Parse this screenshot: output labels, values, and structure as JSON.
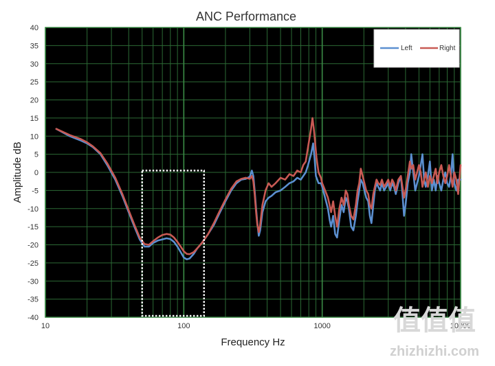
{
  "chart_data": {
    "type": "line",
    "title": "ANC Performance",
    "xlabel": "Frequency Hz",
    "ylabel": "Amplitude dB",
    "x_scale": "log",
    "xlim": [
      10,
      10000
    ],
    "ylim": [
      -40,
      40
    ],
    "x_ticks": [
      "10",
      "100",
      "1000",
      "10000"
    ],
    "y_ticks": [
      "40",
      "35",
      "30",
      "25",
      "20",
      "15",
      "10",
      "5",
      "0",
      "-5",
      "-10",
      "-15",
      "-20",
      "-25",
      "-30",
      "-35",
      "-40"
    ],
    "grid": true,
    "legend_position": "top-right",
    "highlight_box": {
      "x_range": [
        50,
        140
      ],
      "y_range": [
        -40,
        0.5
      ]
    },
    "series": [
      {
        "name": "Left",
        "color": "#5b8fd0",
        "points": [
          [
            12,
            12
          ],
          [
            15,
            10
          ],
          [
            18,
            8.8
          ],
          [
            20,
            8
          ],
          [
            22,
            7
          ],
          [
            25,
            5
          ],
          [
            28,
            2
          ],
          [
            32,
            -2
          ],
          [
            36,
            -6.5
          ],
          [
            40,
            -11
          ],
          [
            44,
            -15
          ],
          [
            48,
            -18.5
          ],
          [
            52,
            -20.5
          ],
          [
            56,
            -20.5
          ],
          [
            60,
            -19.5
          ],
          [
            65,
            -18.8
          ],
          [
            70,
            -18.5
          ],
          [
            75,
            -18.2
          ],
          [
            80,
            -18.4
          ],
          [
            85,
            -19.2
          ],
          [
            90,
            -20.5
          ],
          [
            95,
            -22
          ],
          [
            100,
            -23.5
          ],
          [
            105,
            -24
          ],
          [
            110,
            -23.8
          ],
          [
            118,
            -22.5
          ],
          [
            125,
            -21
          ],
          [
            135,
            -19.5
          ],
          [
            150,
            -17
          ],
          [
            165,
            -14.5
          ],
          [
            180,
            -11.5
          ],
          [
            200,
            -8
          ],
          [
            220,
            -5
          ],
          [
            240,
            -3
          ],
          [
            260,
            -2
          ],
          [
            280,
            -1.8
          ],
          [
            300,
            -1.2
          ],
          [
            310,
            0.5
          ],
          [
            318,
            -1
          ],
          [
            325,
            -5
          ],
          [
            333,
            -10
          ],
          [
            340,
            -14
          ],
          [
            348,
            -17.5
          ],
          [
            356,
            -16
          ],
          [
            370,
            -11
          ],
          [
            390,
            -8
          ],
          [
            410,
            -7
          ],
          [
            430,
            -6.5
          ],
          [
            460,
            -5.5
          ],
          [
            500,
            -5
          ],
          [
            540,
            -4
          ],
          [
            580,
            -3
          ],
          [
            620,
            -2.5
          ],
          [
            660,
            -1.5
          ],
          [
            700,
            -2
          ],
          [
            730,
            -1
          ],
          [
            760,
            0
          ],
          [
            790,
            2
          ],
          [
            830,
            5
          ],
          [
            860,
            8
          ],
          [
            880,
            4
          ],
          [
            900,
            -1
          ],
          [
            940,
            -3
          ],
          [
            980,
            -3
          ],
          [
            1000,
            -4
          ],
          [
            1050,
            -7
          ],
          [
            1100,
            -10
          ],
          [
            1130,
            -13
          ],
          [
            1160,
            -15
          ],
          [
            1200,
            -12
          ],
          [
            1240,
            -17
          ],
          [
            1280,
            -18
          ],
          [
            1330,
            -13
          ],
          [
            1380,
            -9
          ],
          [
            1430,
            -11
          ],
          [
            1480,
            -7
          ],
          [
            1520,
            -8
          ],
          [
            1560,
            -10
          ],
          [
            1620,
            -15
          ],
          [
            1680,
            -16
          ],
          [
            1750,
            -12
          ],
          [
            1800,
            -8
          ],
          [
            1850,
            -5
          ],
          [
            1900,
            -2
          ],
          [
            1960,
            -3
          ],
          [
            2020,
            -5
          ],
          [
            2080,
            -7
          ],
          [
            2150,
            -8
          ],
          [
            2210,
            -12
          ],
          [
            2270,
            -14
          ],
          [
            2340,
            -9
          ],
          [
            2400,
            -5
          ],
          [
            2470,
            -3
          ],
          [
            2540,
            -4
          ],
          [
            2620,
            -5
          ],
          [
            2700,
            -3
          ],
          [
            2800,
            -5
          ],
          [
            2900,
            -4
          ],
          [
            3000,
            -3
          ],
          [
            3100,
            -5
          ],
          [
            3200,
            -3
          ],
          [
            3300,
            -4
          ],
          [
            3400,
            -6
          ],
          [
            3550,
            -3
          ],
          [
            3700,
            -1
          ],
          [
            3800,
            -6
          ],
          [
            3900,
            -12
          ],
          [
            4000,
            -9
          ],
          [
            4150,
            -3
          ],
          [
            4300,
            0
          ],
          [
            4400,
            5
          ],
          [
            4550,
            0
          ],
          [
            4700,
            -5
          ],
          [
            4850,
            -3
          ],
          [
            5000,
            -1
          ],
          [
            5150,
            2
          ],
          [
            5300,
            5
          ],
          [
            5450,
            -2
          ],
          [
            5600,
            -4
          ],
          [
            5800,
            -1
          ],
          [
            6000,
            3
          ],
          [
            6200,
            -5
          ],
          [
            6400,
            -2
          ],
          [
            6600,
            -5
          ],
          [
            6800,
            -1
          ],
          [
            7000,
            -3
          ],
          [
            7250,
            -5
          ],
          [
            7500,
            -2
          ],
          [
            7750,
            0
          ],
          [
            8000,
            -3
          ],
          [
            8250,
            -4
          ],
          [
            8500,
            -1
          ],
          [
            8750,
            5
          ],
          [
            9000,
            -3
          ],
          [
            9300,
            -5
          ],
          [
            9600,
            -2
          ],
          [
            10000,
            -2
          ]
        ]
      },
      {
        "name": "Right",
        "color": "#c85a54",
        "points": [
          [
            12,
            12
          ],
          [
            15,
            10.3
          ],
          [
            18,
            9.2
          ],
          [
            20,
            8.3
          ],
          [
            22,
            7.2
          ],
          [
            25,
            5.3
          ],
          [
            28,
            2.5
          ],
          [
            32,
            -1.5
          ],
          [
            36,
            -6
          ],
          [
            40,
            -10.5
          ],
          [
            44,
            -14.5
          ],
          [
            48,
            -18
          ],
          [
            52,
            -19.8
          ],
          [
            56,
            -20
          ],
          [
            60,
            -19
          ],
          [
            65,
            -18
          ],
          [
            70,
            -17.3
          ],
          [
            75,
            -17
          ],
          [
            80,
            -17.2
          ],
          [
            85,
            -18
          ],
          [
            90,
            -19.2
          ],
          [
            95,
            -20.5
          ],
          [
            100,
            -21.8
          ],
          [
            105,
            -22.5
          ],
          [
            110,
            -22.6
          ],
          [
            118,
            -22
          ],
          [
            125,
            -21
          ],
          [
            135,
            -19.5
          ],
          [
            150,
            -17
          ],
          [
            165,
            -14
          ],
          [
            180,
            -11
          ],
          [
            200,
            -7.5
          ],
          [
            220,
            -4.5
          ],
          [
            240,
            -2.5
          ],
          [
            260,
            -1.8
          ],
          [
            280,
            -1.5
          ],
          [
            300,
            -1.8
          ],
          [
            310,
            -1
          ],
          [
            318,
            -2.5
          ],
          [
            325,
            -6
          ],
          [
            333,
            -11
          ],
          [
            340,
            -14.5
          ],
          [
            348,
            -16.5
          ],
          [
            356,
            -14.5
          ],
          [
            370,
            -9
          ],
          [
            390,
            -5
          ],
          [
            410,
            -3
          ],
          [
            430,
            -4
          ],
          [
            460,
            -3
          ],
          [
            500,
            -1.5
          ],
          [
            540,
            -2
          ],
          [
            580,
            -0.5
          ],
          [
            620,
            -1
          ],
          [
            660,
            0.5
          ],
          [
            700,
            0
          ],
          [
            730,
            2
          ],
          [
            760,
            3
          ],
          [
            790,
            7
          ],
          [
            830,
            12
          ],
          [
            850,
            15
          ],
          [
            870,
            12
          ],
          [
            890,
            8
          ],
          [
            910,
            4
          ],
          [
            940,
            0
          ],
          [
            980,
            -1.5
          ],
          [
            1000,
            -3
          ],
          [
            1050,
            -5
          ],
          [
            1100,
            -7
          ],
          [
            1130,
            -9
          ],
          [
            1160,
            -11
          ],
          [
            1200,
            -8
          ],
          [
            1240,
            -12
          ],
          [
            1280,
            -15
          ],
          [
            1330,
            -10
          ],
          [
            1380,
            -7
          ],
          [
            1430,
            -9
          ],
          [
            1480,
            -5
          ],
          [
            1520,
            -6
          ],
          [
            1560,
            -9
          ],
          [
            1620,
            -12
          ],
          [
            1680,
            -13
          ],
          [
            1750,
            -9
          ],
          [
            1800,
            -5
          ],
          [
            1850,
            -3
          ],
          [
            1900,
            1
          ],
          [
            1960,
            -1
          ],
          [
            2020,
            -3
          ],
          [
            2080,
            -5
          ],
          [
            2150,
            -6
          ],
          [
            2210,
            -9
          ],
          [
            2270,
            -10
          ],
          [
            2340,
            -6
          ],
          [
            2400,
            -4
          ],
          [
            2470,
            -2
          ],
          [
            2540,
            -3
          ],
          [
            2620,
            -3.5
          ],
          [
            2700,
            -2
          ],
          [
            2800,
            -4
          ],
          [
            2900,
            -3
          ],
          [
            3000,
            -2
          ],
          [
            3100,
            -4
          ],
          [
            3200,
            -2
          ],
          [
            3300,
            -3
          ],
          [
            3400,
            -5
          ],
          [
            3550,
            -2
          ],
          [
            3700,
            -1
          ],
          [
            3800,
            -4
          ],
          [
            3900,
            -7
          ],
          [
            4000,
            -5
          ],
          [
            4150,
            -1
          ],
          [
            4300,
            3
          ],
          [
            4400,
            1
          ],
          [
            4550,
            2
          ],
          [
            4700,
            -2
          ],
          [
            4850,
            0
          ],
          [
            5000,
            2
          ],
          [
            5150,
            0
          ],
          [
            5300,
            -4
          ],
          [
            5450,
            -2
          ],
          [
            5600,
            0
          ],
          [
            5800,
            -4
          ],
          [
            6000,
            -1
          ],
          [
            6200,
            -3
          ],
          [
            6400,
            -1
          ],
          [
            6600,
            1
          ],
          [
            6800,
            -3
          ],
          [
            7000,
            0
          ],
          [
            7250,
            2
          ],
          [
            7500,
            -1
          ],
          [
            7750,
            -3
          ],
          [
            8000,
            -1
          ],
          [
            8250,
            2
          ],
          [
            8500,
            -1
          ],
          [
            8750,
            -4
          ],
          [
            9000,
            0
          ],
          [
            9300,
            -2
          ],
          [
            9600,
            -6
          ],
          [
            10000,
            2
          ]
        ]
      }
    ]
  },
  "watermark": {
    "glyphs": "值值值",
    "text": "zhizhizhi.com"
  }
}
